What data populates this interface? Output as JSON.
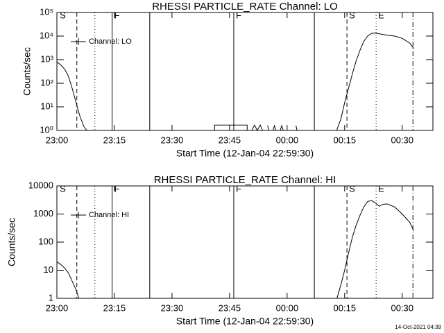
{
  "chart_data": [
    {
      "type": "line",
      "title": "RHESSI PARTICLE_RATE Channel: LO",
      "xlabel": "Start Time (12-Jan-04 22:59:30)",
      "ylabel": "Counts/sec",
      "log_y": true,
      "legend": "upper left",
      "xlim": [
        0,
        98
      ],
      "ylim": [
        1,
        100000
      ],
      "xticks": [
        {
          "value": 0,
          "label": "23:00"
        },
        {
          "value": 15,
          "label": "23:15"
        },
        {
          "value": 30,
          "label": "23:30"
        },
        {
          "value": 45,
          "label": "23:45"
        },
        {
          "value": 60,
          "label": "00:00"
        },
        {
          "value": 75,
          "label": "00:15"
        },
        {
          "value": 90,
          "label": "00:30"
        }
      ],
      "yticks": [
        {
          "value": 1,
          "label": "10⁰"
        },
        {
          "value": 10,
          "label": "10¹"
        },
        {
          "value": 100,
          "label": "10²"
        },
        {
          "value": 1000,
          "label": "10³"
        },
        {
          "value": 10000,
          "label": "10⁴"
        },
        {
          "value": 100000,
          "label": "10⁵"
        }
      ],
      "vlines": [
        {
          "x": 5.2,
          "style": "dashed"
        },
        {
          "x": 9.9,
          "style": "dotted"
        },
        {
          "x": 14.4,
          "style": "solid"
        },
        {
          "x": 24.2,
          "style": "solid"
        },
        {
          "x": 46.1,
          "style": "solid"
        },
        {
          "x": 67.1,
          "style": "solid"
        },
        {
          "x": 75.6,
          "style": "dashed"
        },
        {
          "x": 83.2,
          "style": "dotted"
        },
        {
          "x": 92.8,
          "style": "dashdot"
        }
      ],
      "annotations": [
        {
          "x": 0.2,
          "text": "S"
        },
        {
          "x": 14.4,
          "text": "F"
        },
        {
          "x": 46.1,
          "text": "F"
        },
        {
          "x": 75.6,
          "text": "S"
        },
        {
          "x": 83.2,
          "text": "E"
        }
      ],
      "x": [
        0,
        1,
        2,
        3,
        4,
        5,
        6,
        7,
        7.8,
        20,
        41.1,
        41.1,
        49.6,
        49.6,
        50,
        50.8,
        51.5,
        52.2,
        53,
        53.6,
        54.5,
        54.9,
        55.3,
        56,
        56.3,
        56.7,
        57.1,
        57.8,
        58.2,
        58.6,
        59,
        62,
        62.3,
        62.6,
        65,
        72.9,
        74,
        75,
        76,
        77,
        78,
        79,
        80,
        81,
        82,
        83,
        84,
        86,
        88,
        90,
        92,
        93
      ],
      "series": [
        {
          "name": "Channel: LO",
          "color": "#000000",
          "values": [
            800,
            600,
            400,
            200,
            60,
            15,
            4,
            1.5,
            1,
            null,
            1,
            1.7,
            1.7,
            1,
            null,
            1,
            1.7,
            1,
            1.7,
            1,
            null,
            1.6,
            1,
            null,
            1,
            1.6,
            1,
            null,
            1,
            1.6,
            1,
            null,
            1.6,
            1,
            null,
            1,
            3,
            15,
            60,
            250,
            900,
            2500,
            6000,
            10000,
            13000,
            13500,
            12500,
            11000,
            10000,
            8000,
            5000,
            3000
          ]
        }
      ]
    },
    {
      "type": "line",
      "title": "RHESSI PARTICLE_RATE Channel: HI",
      "xlabel": "Start Time (12-Jan-04 22:59:30)",
      "ylabel": "Counts/sec",
      "log_y": true,
      "legend": "upper left",
      "xlim": [
        0,
        98
      ],
      "ylim": [
        1,
        10000
      ],
      "xticks": [
        {
          "value": 0,
          "label": "23:00"
        },
        {
          "value": 15,
          "label": "23:15"
        },
        {
          "value": 30,
          "label": "23:30"
        },
        {
          "value": 45,
          "label": "23:45"
        },
        {
          "value": 60,
          "label": "00:00"
        },
        {
          "value": 75,
          "label": "00:15"
        },
        {
          "value": 90,
          "label": "00:30"
        }
      ],
      "yticks": [
        1,
        10,
        100,
        1000,
        10000
      ],
      "vlines": [
        {
          "x": 5.2,
          "style": "dashed"
        },
        {
          "x": 9.9,
          "style": "dotted"
        },
        {
          "x": 14.4,
          "style": "solid"
        },
        {
          "x": 24.2,
          "style": "solid"
        },
        {
          "x": 46.1,
          "style": "solid"
        },
        {
          "x": 67.1,
          "style": "solid"
        },
        {
          "x": 75.6,
          "style": "dashed"
        },
        {
          "x": 83.2,
          "style": "dotted"
        },
        {
          "x": 92.8,
          "style": "dashdot"
        }
      ],
      "annotations": [
        {
          "x": 0.2,
          "text": "S"
        },
        {
          "x": 14.4,
          "text": "F"
        },
        {
          "x": 46.1,
          "text": "F"
        },
        {
          "x": 75.6,
          "text": "S"
        },
        {
          "x": 83.2,
          "text": "E"
        }
      ],
      "x": [
        0,
        1,
        2,
        3,
        4,
        5,
        5.7,
        40,
        73,
        74,
        75,
        76,
        77,
        78,
        79,
        80,
        81,
        82,
        83,
        84,
        85,
        86,
        88,
        90,
        92,
        93
      ],
      "series": [
        {
          "name": "Channel: HI",
          "color": "#000000",
          "values": [
            20,
            16,
            12,
            8,
            4,
            2,
            1,
            null,
            1,
            3,
            10,
            40,
            150,
            400,
            900,
            1800,
            2800,
            3000,
            2500,
            1900,
            2200,
            2300,
            1800,
            1000,
            500,
            250
          ]
        }
      ]
    }
  ],
  "footer": "14-Oct-2021 04:39"
}
